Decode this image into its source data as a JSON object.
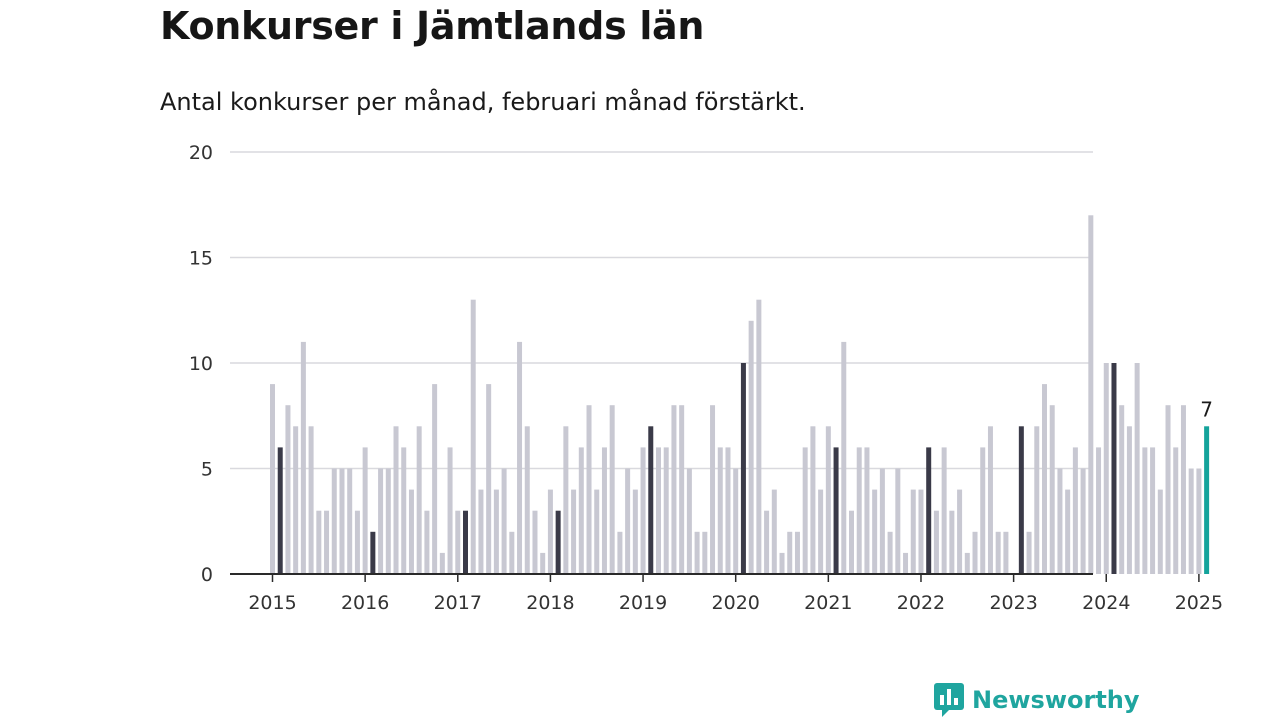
{
  "header": {
    "title": "Konkurser i Jämtlands län",
    "subtitle": "Antal konkurser per månad, februari månad förstärkt."
  },
  "brand": {
    "name": "Newsworthy",
    "icon": "bar-chart-speech-bubble-icon"
  },
  "colors": {
    "bar": "#c8c8d2",
    "highlight": "#3a3a48",
    "latest": "#14a39b",
    "grid": "#d9d9de",
    "axis": "#2a2a2a",
    "brand": "#1fa59f"
  },
  "chart_data": {
    "type": "bar",
    "title": "Konkurser i Jämtlands län",
    "subtitle": "Antal konkurser per månad, februari månad förstärkt.",
    "xlabel": "",
    "ylabel": "",
    "ylim": [
      0,
      20
    ],
    "yticks": [
      0,
      5,
      10,
      15,
      20
    ],
    "grid": true,
    "legend": "none",
    "x_tick_labels": [
      "2015",
      "2016",
      "2017",
      "2018",
      "2019",
      "2020",
      "2021",
      "2022",
      "2023",
      "2024",
      "2025"
    ],
    "first_month": "2015-01",
    "highlight_month": "February",
    "values": [
      9,
      6,
      8,
      7,
      11,
      7,
      3,
      3,
      5,
      5,
      5,
      3,
      6,
      2,
      5,
      5,
      7,
      6,
      4,
      7,
      3,
      9,
      1,
      6,
      3,
      3,
      13,
      4,
      9,
      4,
      5,
      2,
      11,
      7,
      3,
      1,
      4,
      3,
      7,
      4,
      6,
      8,
      4,
      6,
      8,
      2,
      5,
      4,
      6,
      7,
      6,
      6,
      8,
      8,
      5,
      2,
      2,
      8,
      6,
      6,
      5,
      10,
      12,
      13,
      3,
      4,
      1,
      2,
      2,
      6,
      7,
      4,
      7,
      6,
      11,
      3,
      6,
      6,
      4,
      5,
      2,
      5,
      1,
      4,
      4,
      6,
      3,
      6,
      3,
      4,
      1,
      2,
      6,
      7,
      2,
      2,
      0,
      7,
      2,
      7,
      9,
      8,
      5,
      4,
      6,
      5,
      17,
      6,
      10,
      10,
      8,
      7,
      10,
      6,
      6,
      4,
      8,
      6,
      8,
      5,
      5,
      7
    ],
    "annotation": {
      "month": "2025-02",
      "value": 7,
      "label": "7"
    }
  }
}
